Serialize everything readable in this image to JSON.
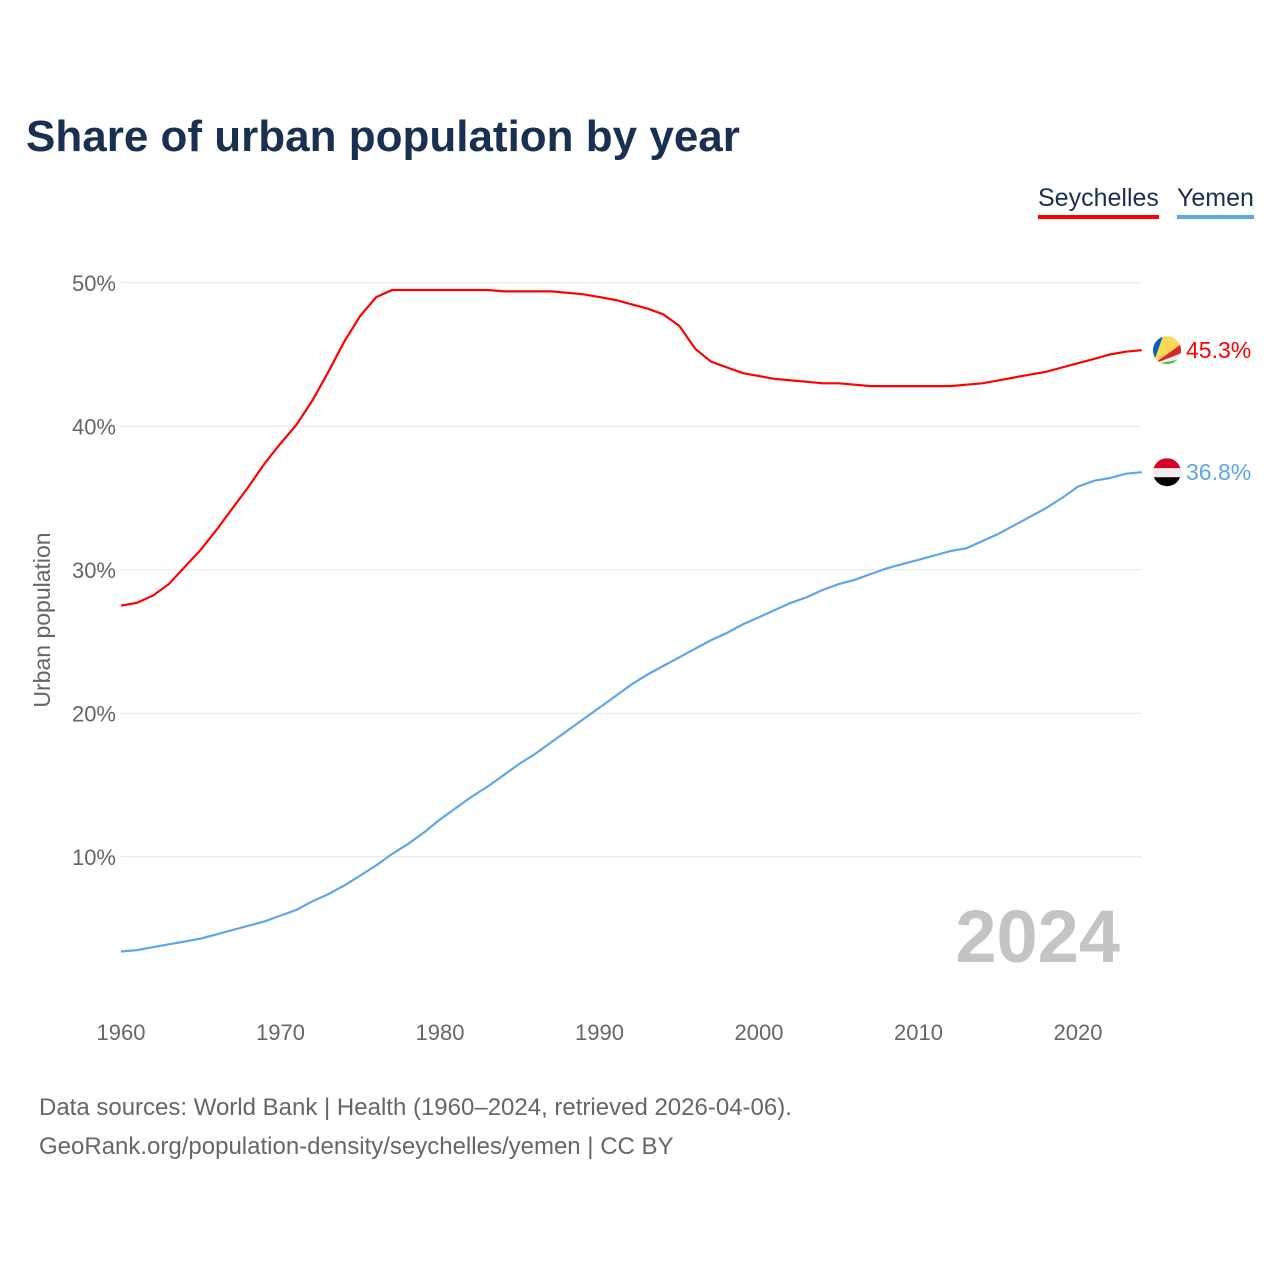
{
  "chart_data": {
    "type": "line",
    "title": "Share of urban population by year",
    "xlabel": "",
    "ylabel": "Urban population",
    "xlim": [
      1960,
      2024
    ],
    "ylim": [
      0,
      50
    ],
    "yticks": [
      10,
      20,
      30,
      40,
      50
    ],
    "ytick_labels": [
      "10%",
      "20%",
      "30%",
      "40%",
      "50%"
    ],
    "xticks": [
      1960,
      1970,
      1980,
      1990,
      2000,
      2010,
      2020
    ],
    "xtick_labels": [
      "1960",
      "1970",
      "1980",
      "1990",
      "2000",
      "2010",
      "2020"
    ],
    "grid": true,
    "legend_position": "top-right",
    "year_watermark": "2024",
    "series": [
      {
        "name": "Seychelles",
        "color": "#ff0000",
        "end_label": "45.3%",
        "flag": "seychelles-flag",
        "values": [
          27.5,
          27.7,
          28.2,
          29.0,
          30.2,
          31.4,
          32.8,
          34.3,
          35.8,
          37.4,
          38.8,
          40.1,
          41.8,
          43.8,
          45.9,
          47.7,
          49.0,
          49.5,
          49.5,
          49.5,
          49.5,
          49.5,
          49.5,
          49.5,
          49.4,
          49.4,
          49.4,
          49.4,
          49.3,
          49.2,
          49.0,
          48.8,
          48.5,
          48.2,
          47.8,
          47.0,
          45.4,
          44.5,
          44.1,
          43.7,
          43.5,
          43.3,
          43.2,
          43.1,
          43.0,
          43.0,
          42.9,
          42.8,
          42.8,
          42.8,
          42.8,
          42.8,
          42.8,
          42.9,
          43.0,
          43.2,
          43.4,
          43.6,
          43.8,
          44.1,
          44.4,
          44.7,
          45.0,
          45.2,
          45.3
        ]
      },
      {
        "name": "Yemen",
        "color": "#5ea5ea",
        "end_label": "36.8%",
        "flag": "yemen-flag",
        "values": [
          3.4,
          3.5,
          3.7,
          3.9,
          4.1,
          4.3,
          4.6,
          4.9,
          5.2,
          5.5,
          5.9,
          6.3,
          6.9,
          7.4,
          8.0,
          8.7,
          9.4,
          10.2,
          10.9,
          11.7,
          12.6,
          13.4,
          14.2,
          14.9,
          15.7,
          16.5,
          17.2,
          18.0,
          18.8,
          19.6,
          20.4,
          21.2,
          22.0,
          22.7,
          23.3,
          23.9,
          24.5,
          25.1,
          25.6,
          26.2,
          26.7,
          27.2,
          27.7,
          28.1,
          28.6,
          29.0,
          29.3,
          29.7,
          30.1,
          30.4,
          30.7,
          31.0,
          31.3,
          31.5,
          32.0,
          32.5,
          33.1,
          33.7,
          34.3,
          35.0,
          35.8,
          36.2,
          36.4,
          36.7,
          36.8
        ]
      }
    ]
  },
  "source": {
    "line1": "Data sources: World Bank | Health (1960–2024, retrieved 2026-04-06).",
    "line2": "GeoRank.org/population-density/seychelles/yemen | CC BY"
  }
}
